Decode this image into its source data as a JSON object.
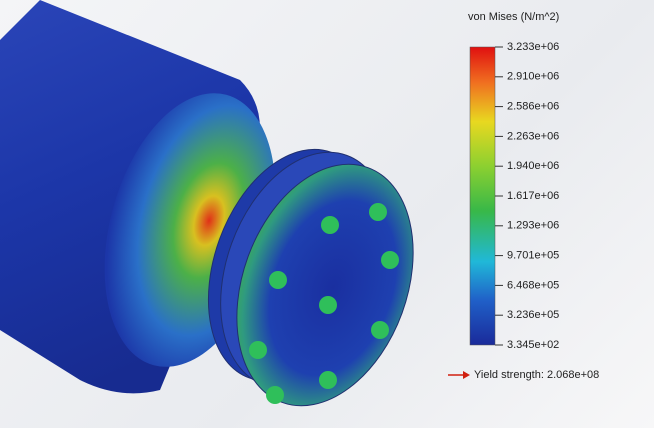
{
  "legend": {
    "title": "von Mises (N/m^2)",
    "ticks": [
      "3.233e+06",
      "2.910e+06",
      "2.586e+06",
      "2.263e+06",
      "1.940e+06",
      "1.617e+06",
      "1.293e+06",
      "9.701e+05",
      "6.468e+05",
      "3.236e+05",
      "3.345e+02"
    ]
  },
  "yield_label": "Yield strength: 2.068e+08"
}
